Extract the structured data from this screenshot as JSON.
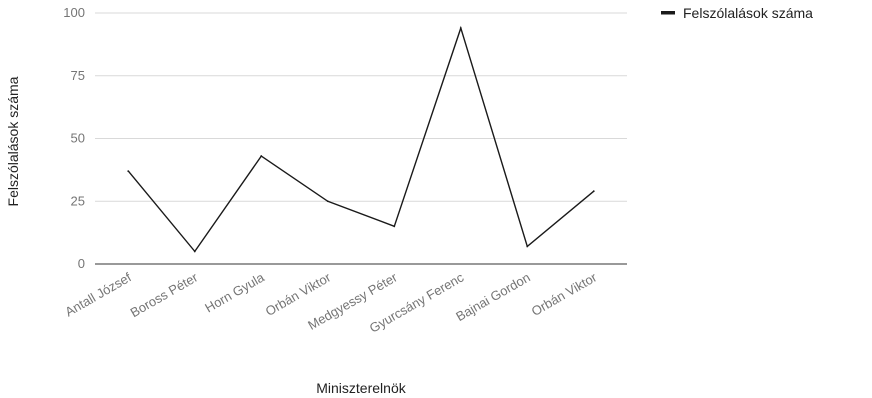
{
  "chart_data": {
    "type": "line",
    "title": "",
    "xlabel": "Miniszterelnök",
    "ylabel": "Felszólalások száma",
    "categories": [
      "Antall József",
      "Boross Péter",
      "Horn Gyula",
      "Orbán Viktor",
      "Medgyessy Péter",
      "Gyurcsány Ferenc",
      "Bajnai Gordon",
      "Orbán Viktor"
    ],
    "series": [
      {
        "name": "Felszólalások száma",
        "values": [
          37,
          5,
          43,
          25,
          15,
          94,
          7,
          29
        ],
        "color": "#1a1a1a"
      }
    ],
    "yticks": [
      "0",
      "25",
      "50",
      "75",
      "100"
    ],
    "ylim": [
      0,
      100
    ],
    "grid": true,
    "legend_position": "top-right"
  }
}
